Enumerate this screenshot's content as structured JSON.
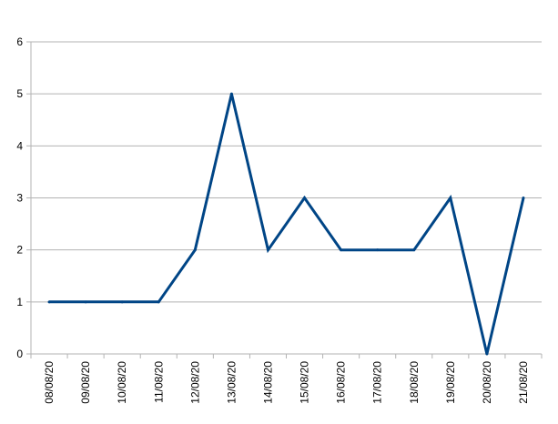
{
  "chart_data": {
    "type": "line",
    "title": "",
    "xlabel": "",
    "ylabel": "",
    "categories": [
      "08/08/20",
      "09/08/20",
      "10/08/20",
      "11/08/20",
      "12/08/20",
      "13/08/20",
      "14/08/20",
      "15/08/20",
      "16/08/20",
      "17/08/20",
      "18/08/20",
      "19/08/20",
      "20/08/20",
      "21/08/20"
    ],
    "series": [
      {
        "values": [
          1,
          1,
          1,
          1,
          2,
          5,
          2,
          3,
          2,
          2,
          2,
          3,
          0,
          3
        ],
        "color": "#004586"
      }
    ],
    "ylim": [
      0,
      6
    ],
    "yticks": [
      "0",
      "1",
      "2",
      "3",
      "4",
      "5",
      "6"
    ],
    "grid": true,
    "legend": "none"
  }
}
